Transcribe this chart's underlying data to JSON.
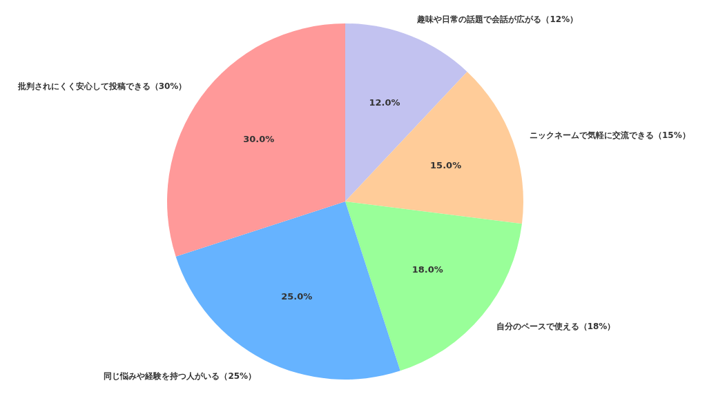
{
  "chart_data": {
    "type": "pie",
    "categories": [
      "趣味や日常の話題で会話が広がる（12%）",
      "ニックネームで気軽に交流できる（15%）",
      "自分のペースで使える（18%）",
      "同じ悩みや経験を持つ人がいる（25%）",
      "批判されにくく安心して投稿できる（30%）"
    ],
    "values": [
      12,
      15,
      18,
      25,
      30
    ],
    "value_labels": [
      "12.0%",
      "15.0%",
      "18.0%",
      "25.0%",
      "30.0%"
    ],
    "colors": [
      "#c2c2f0",
      "#ffcc99",
      "#99ff99",
      "#66b3ff",
      "#ff9999"
    ]
  }
}
